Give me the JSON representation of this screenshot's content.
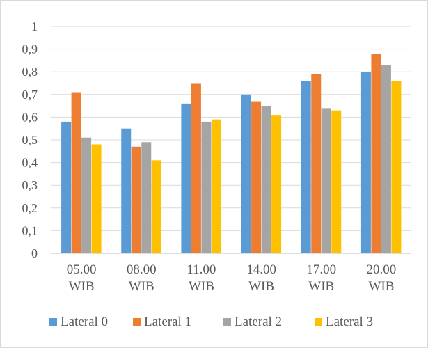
{
  "chart_data": {
    "type": "bar",
    "categories": [
      [
        "05.00",
        "WIB"
      ],
      [
        "08.00",
        "WIB"
      ],
      [
        "11.00",
        "WIB"
      ],
      [
        "14.00",
        "WIB"
      ],
      [
        "17.00",
        "WIB"
      ],
      [
        "20.00",
        "WIB"
      ]
    ],
    "series": [
      {
        "name": "Lateral 0",
        "color": "#5b9bd5",
        "values": [
          0.58,
          0.55,
          0.66,
          0.7,
          0.76,
          0.8
        ]
      },
      {
        "name": "Lateral 1",
        "color": "#ed7d31",
        "values": [
          0.71,
          0.47,
          0.75,
          0.67,
          0.79,
          0.88
        ]
      },
      {
        "name": "Lateral 2",
        "color": "#a5a5a5",
        "values": [
          0.51,
          0.49,
          0.58,
          0.65,
          0.64,
          0.83
        ]
      },
      {
        "name": "Lateral 3",
        "color": "#ffc000",
        "values": [
          0.48,
          0.41,
          0.59,
          0.61,
          0.63,
          0.76
        ]
      }
    ],
    "ylim": [
      0,
      1
    ],
    "yticks": [
      "0",
      "0,1",
      "0,2",
      "0,3",
      "0,4",
      "0,5",
      "0,6",
      "0,7",
      "0,8",
      "0,9",
      "1"
    ],
    "title": "",
    "xlabel": "",
    "ylabel": "",
    "grid": true,
    "legend_position": "bottom"
  }
}
